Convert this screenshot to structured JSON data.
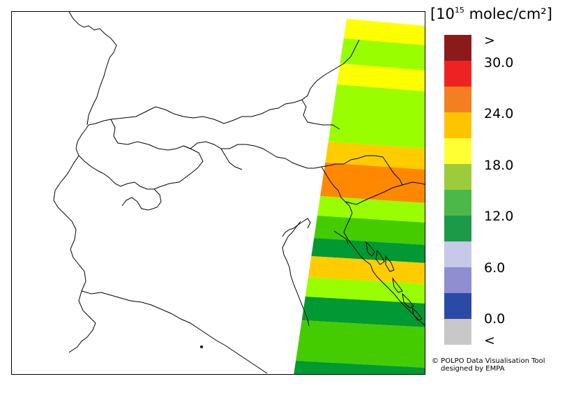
{
  "colorbar": {
    "unit_prefix": "[10",
    "unit_exponent": "15",
    "unit_suffix": " molec/cm²]",
    "bins": [
      {
        "label": ">",
        "color": "#8b1a1a"
      },
      {
        "label": "",
        "color": "#ee2222"
      },
      {
        "label": "",
        "color": "#f57f20"
      },
      {
        "label": "",
        "color": "#ffc400"
      },
      {
        "label": "",
        "color": "#ffff33"
      },
      {
        "label": "",
        "color": "#9ccc3c"
      },
      {
        "label": "",
        "color": "#4cb84a"
      },
      {
        "label": "",
        "color": "#1c9a48"
      },
      {
        "label": "",
        "color": "#c8c8e8"
      },
      {
        "label": "",
        "color": "#8e8ed0"
      },
      {
        "label": "",
        "color": "#2a4aa6"
      },
      {
        "label": "<",
        "color": "#c8c8c8"
      }
    ],
    "tick_labels": [
      ">",
      "30.0",
      "24.0",
      "18.0",
      "12.0",
      "6.0",
      "0.0",
      "<"
    ]
  },
  "credit": {
    "line1": "© POLPO Data Visualisation Tool",
    "line2": "designed by EMPA"
  },
  "map": {
    "swath_rows": [
      {
        "value_bin": "18-21",
        "color": "#ffff00"
      },
      {
        "value_bin": "15-18",
        "color": "#99ff00"
      },
      {
        "value_bin": "18-21",
        "color": "#ffff00"
      },
      {
        "value_bin": "15-18",
        "color": "#99ff00"
      },
      {
        "value_bin": "21-24",
        "color": "#ffcc00"
      },
      {
        "value_bin": "24-27",
        "color": "#ff8800"
      },
      {
        "value_bin": "15-18",
        "color": "#99ff00"
      },
      {
        "value_bin": "12-15",
        "color": "#44cc00"
      },
      {
        "value_bin": "9-12",
        "color": "#009933"
      },
      {
        "value_bin": "21-24",
        "color": "#ffcc00"
      },
      {
        "value_bin": "15-18",
        "color": "#99ff00"
      },
      {
        "value_bin": "9-12",
        "color": "#009933"
      },
      {
        "value_bin": "12-15",
        "color": "#44cc00"
      },
      {
        "value_bin": "9-12",
        "color": "#009933"
      }
    ]
  }
}
